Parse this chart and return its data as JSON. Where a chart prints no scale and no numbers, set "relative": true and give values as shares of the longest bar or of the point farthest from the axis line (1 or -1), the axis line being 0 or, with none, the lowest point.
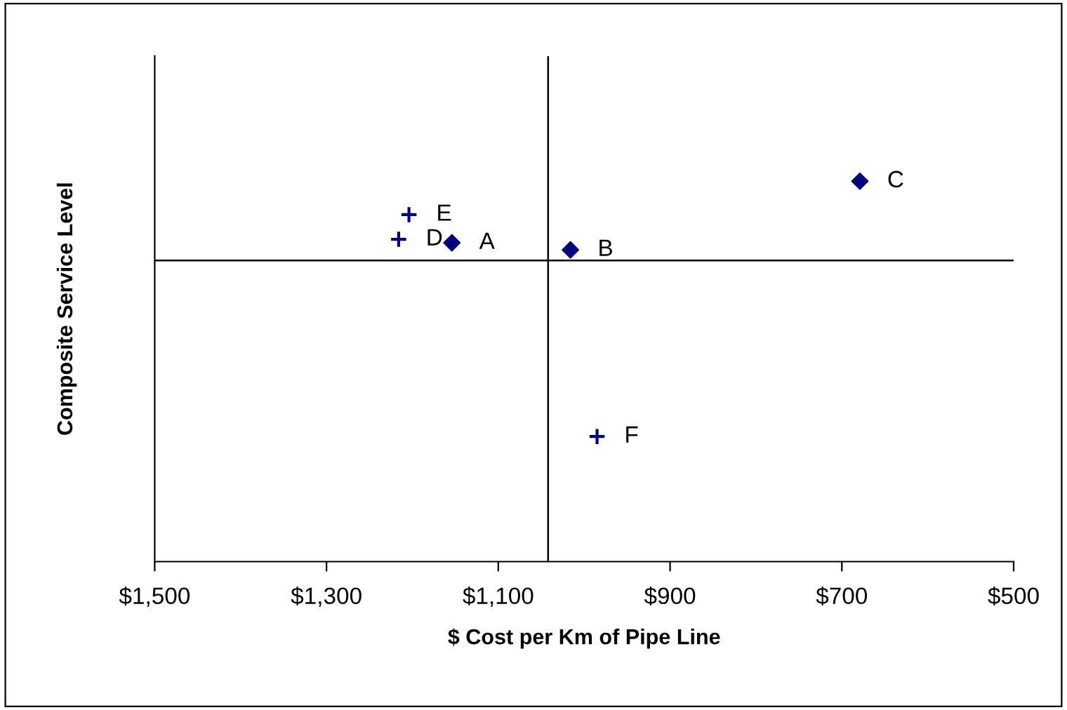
{
  "chart_data": {
    "type": "scatter",
    "relative": true,
    "xlabel": "$ Cost per Km of Pipe Line",
    "ylabel": "Composite Service Level",
    "xlim": [
      1500,
      500
    ],
    "xticks": [
      {
        "value": 1500,
        "label": "$1,500"
      },
      {
        "value": 1300,
        "label": "$1,300"
      },
      {
        "value": 1100,
        "label": "$1,100"
      },
      {
        "value": 900,
        "label": "$900"
      },
      {
        "value": 700,
        "label": "$700"
      },
      {
        "value": 500,
        "label": "$500"
      }
    ],
    "series": [
      {
        "color": "#000080",
        "marker": "diamond",
        "x": [
          1154,
          1016,
          679
        ],
        "values": [
          0.1,
          0.06,
          0.45
        ]
      },
      {
        "color": "#000080",
        "marker": "cross",
        "x": [
          1216,
          1204,
          985
        ],
        "values": [
          0.12,
          0.26,
          -1
        ]
      }
    ],
    "annotations": [
      {
        "text": "A",
        "x": 1154,
        "y": 0.1
      },
      {
        "text": "B",
        "x": 1016,
        "y": 0.06
      },
      {
        "text": "C",
        "x": 679,
        "y": 0.45
      },
      {
        "text": "D",
        "x": 1216,
        "y": 0.12
      },
      {
        "text": "E",
        "x": 1204,
        "y": 0.26
      },
      {
        "text": "F",
        "x": 985,
        "y": -1
      }
    ],
    "ref_lines": [
      {
        "axis": "x",
        "value": 1042,
        "color": "#000000"
      },
      {
        "axis": "y",
        "value": 0,
        "color": "#000000"
      }
    ],
    "grid": false,
    "legend": false
  }
}
